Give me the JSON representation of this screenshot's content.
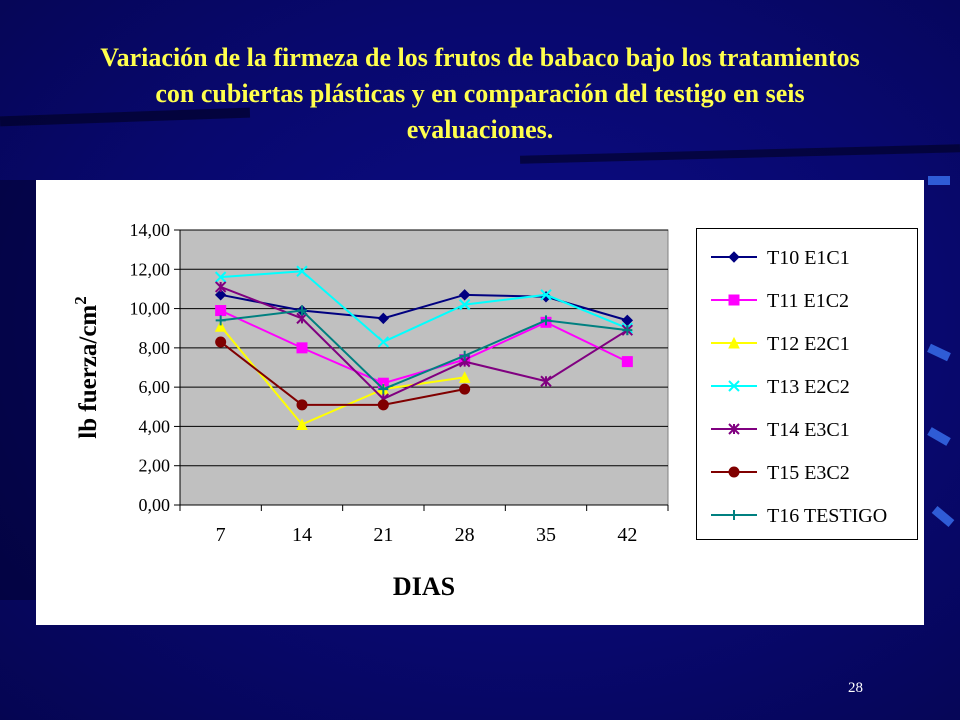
{
  "slide": {
    "title_lines": [
      "Variación de la firmeza de los frutos de babaco bajo los tratamientos",
      "con cubiertas plásticas y en comparación del testigo en seis",
      "evaluaciones."
    ],
    "page_number": "28",
    "colors": {
      "background": "#08086e",
      "title": "#ffff4d",
      "plot_bg": "#c0c0c0"
    }
  },
  "chart_data": {
    "type": "line",
    "xlabel": "DIAS",
    "ylabel": "lb fuerza/cm",
    "ylabel_superscript": "2",
    "x": [
      7,
      14,
      21,
      28,
      35,
      42
    ],
    "x_tick_labels": [
      "7",
      "14",
      "21",
      "28",
      "35",
      "42"
    ],
    "y_tick_labels": [
      "0,00",
      "2,00",
      "4,00",
      "6,00",
      "8,00",
      "10,00",
      "12,00",
      "14,00"
    ],
    "ylim": [
      0,
      14
    ],
    "grid": true,
    "legend_position": "right",
    "series": [
      {
        "name": "T10 E1C1",
        "color": "#000080",
        "marker": "diamond",
        "values": [
          10.7,
          9.9,
          9.5,
          10.7,
          10.6,
          9.4
        ]
      },
      {
        "name": "T11 E1C2",
        "color": "#ff00ff",
        "marker": "square",
        "values": [
          9.9,
          8.0,
          6.2,
          7.4,
          9.3,
          7.3
        ]
      },
      {
        "name": "T12 E2C1",
        "color": "#ffff00",
        "marker": "triangle",
        "values": [
          9.1,
          4.1,
          5.9,
          6.5,
          null,
          null
        ]
      },
      {
        "name": "T13 E2C2",
        "color": "#00ffff",
        "marker": "x",
        "values": [
          11.6,
          11.9,
          8.3,
          10.2,
          10.7,
          9.0
        ]
      },
      {
        "name": "T14 E3C1",
        "color": "#800080",
        "marker": "asterisk",
        "values": [
          11.1,
          9.5,
          5.4,
          7.3,
          6.3,
          8.9
        ]
      },
      {
        "name": "T15 E3C2",
        "color": "#800000",
        "marker": "circle",
        "values": [
          8.3,
          5.1,
          5.1,
          5.9,
          null,
          null
        ]
      },
      {
        "name": "T16 TESTIGO",
        "color": "#008080",
        "marker": "plus",
        "values": [
          9.4,
          9.9,
          5.9,
          7.6,
          9.4,
          8.9
        ]
      }
    ]
  }
}
